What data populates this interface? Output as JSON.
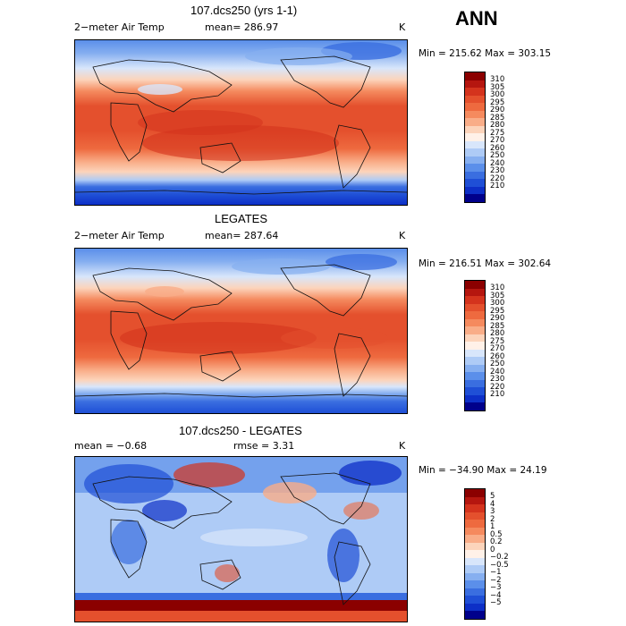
{
  "season_label": "ANN",
  "panels": [
    {
      "title": "107.dcs250 (yrs 1-1)",
      "left_label": "2−meter Air Temp",
      "center_label": "mean=  286.97",
      "unit": "K",
      "minmax": "Min = 215.62 Max = 303.15",
      "colorbar": {
        "labels": [
          "310",
          "305",
          "300",
          "295",
          "290",
          "285",
          "280",
          "275",
          "270",
          "260",
          "250",
          "240",
          "230",
          "220",
          "210"
        ],
        "colors": [
          "#8b0000",
          "#b5160f",
          "#d4331d",
          "#e4502d",
          "#ee6a3f",
          "#f58a5e",
          "#f9ad88",
          "#fcd4bb",
          "#fff1e8",
          "#d8e6fb",
          "#aecbf6",
          "#86aff0",
          "#5b8fea",
          "#3a6ee0",
          "#1f4fd6",
          "#0d2fc7",
          "#00008b"
        ]
      }
    },
    {
      "title": "LEGATES",
      "left_label": "2−meter Air Temp",
      "center_label": "mean= 287.64",
      "unit": "K",
      "minmax": "Min = 216.51 Max = 302.64",
      "colorbar": {
        "labels": [
          "310",
          "305",
          "300",
          "295",
          "290",
          "285",
          "280",
          "275",
          "270",
          "260",
          "250",
          "240",
          "230",
          "220",
          "210"
        ],
        "colors": [
          "#8b0000",
          "#b5160f",
          "#d4331d",
          "#e4502d",
          "#ee6a3f",
          "#f58a5e",
          "#f9ad88",
          "#fcd4bb",
          "#fff1e8",
          "#d8e6fb",
          "#aecbf6",
          "#86aff0",
          "#5b8fea",
          "#3a6ee0",
          "#1f4fd6",
          "#0d2fc7",
          "#00008b"
        ]
      }
    },
    {
      "title": "107.dcs250 - LEGATES",
      "left_label": "mean =   −0.68",
      "center_label": "rmse =    3.31",
      "unit": "K",
      "minmax": "Min = −34.90 Max =   24.19",
      "colorbar": {
        "labels": [
          "5",
          "4",
          "3",
          "2",
          "1",
          "0.5",
          "0.2",
          "0",
          "−0.2",
          "−0.5",
          "−1",
          "−2",
          "−3",
          "−4",
          "−5"
        ],
        "colors": [
          "#8b0000",
          "#b5160f",
          "#d4331d",
          "#e4502d",
          "#ee6a3f",
          "#f58a5e",
          "#f9ad88",
          "#fcd4bb",
          "#fff1e8",
          "#d8e6fb",
          "#aecbf6",
          "#86aff0",
          "#5b8fea",
          "#3a6ee0",
          "#1f4fd6",
          "#0d2fc7",
          "#00008b"
        ]
      }
    }
  ]
}
